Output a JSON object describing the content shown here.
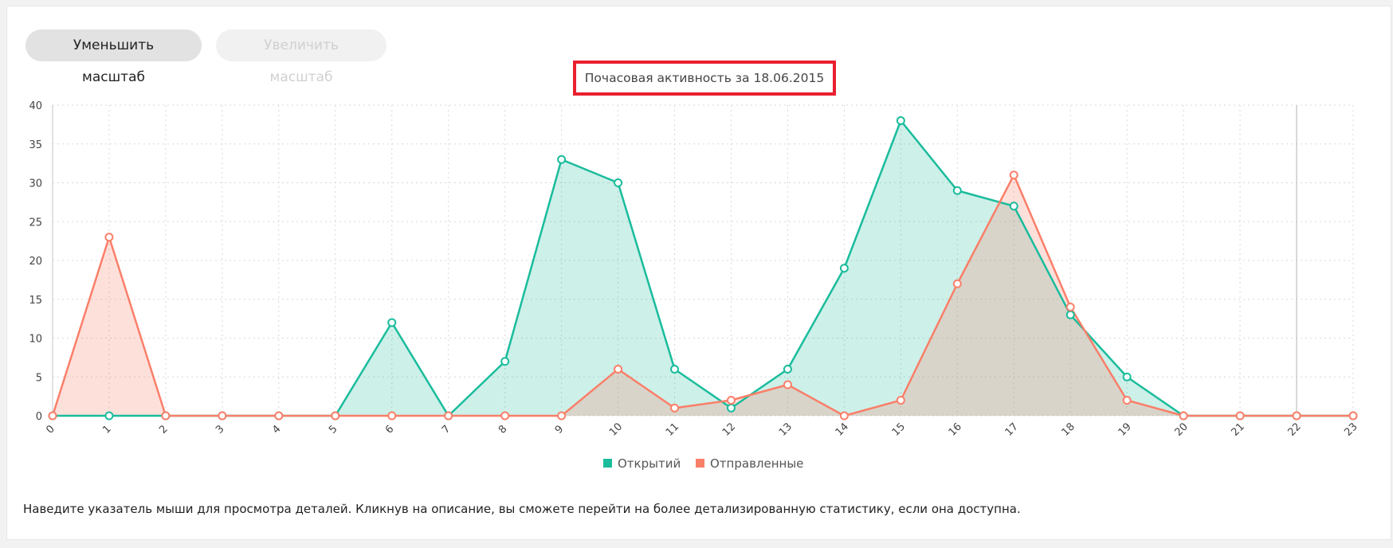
{
  "toolbar": {
    "zoom_out_label": "Уменьшить масштаб",
    "zoom_in_label": "Увеличить масштаб"
  },
  "footnote": "Наведите указатель мыши для просмотра деталей. Кликнув на описание, вы сможете перейти на более детализированную статистику, если она доступна.",
  "colors": {
    "opened": "#1abc9c",
    "sent": "#fa7f69",
    "highlight": "#e8202f"
  },
  "chart_data": {
    "type": "area",
    "title": "Почасовая активность за 18.06.2015",
    "x": [
      "0",
      "1",
      "2",
      "3",
      "4",
      "5",
      "6",
      "7",
      "8",
      "9",
      "10",
      "11",
      "12",
      "13",
      "14",
      "15",
      "16",
      "17",
      "18",
      "19",
      "20",
      "21",
      "22",
      "23"
    ],
    "series": [
      {
        "name": "Открытий",
        "color": "#1abc9c",
        "values": [
          0,
          0,
          0,
          0,
          0,
          0,
          12,
          0,
          7,
          33,
          30,
          6,
          1,
          6,
          19,
          38,
          29,
          27,
          13,
          5,
          0,
          0,
          0,
          0
        ]
      },
      {
        "name": "Отправленные",
        "color": "#fa7f69",
        "values": [
          0,
          23,
          0,
          0,
          0,
          0,
          0,
          0,
          0,
          0,
          6,
          1,
          2,
          4,
          0,
          2,
          17,
          31,
          14,
          2,
          0,
          0,
          0,
          0
        ]
      }
    ],
    "ylim": [
      0,
      40
    ],
    "yticks": [
      0,
      5,
      10,
      15,
      20,
      25,
      30,
      35,
      40
    ],
    "grid": true,
    "legend_position": "bottom-center"
  }
}
